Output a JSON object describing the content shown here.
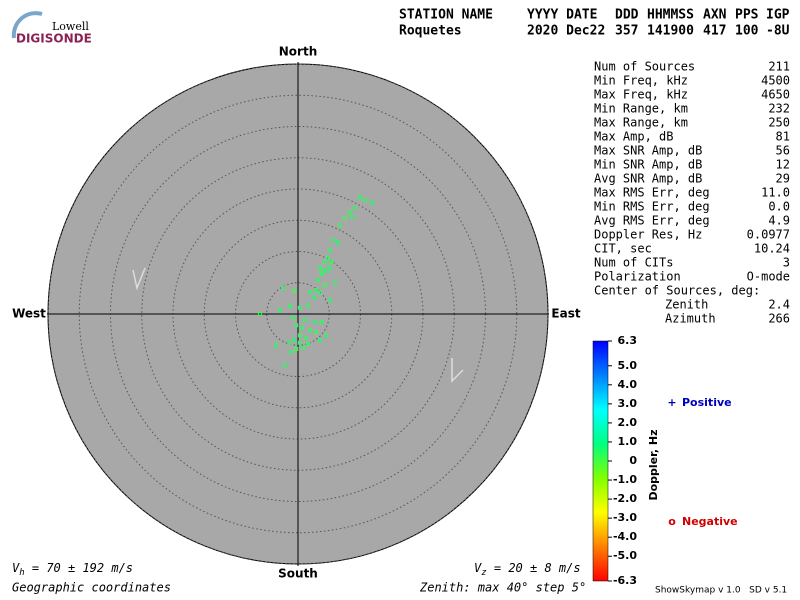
{
  "logo": {
    "top": "Lowell",
    "bottom": "DIGISONDE"
  },
  "header": {
    "labels": [
      "STATION NAME",
      "YYYY DATE",
      "DDD",
      "HHMMSS",
      "AXN",
      "PPS",
      "IGP"
    ],
    "values": [
      "Roquetes",
      "2020 Dec22",
      "357",
      "141900",
      "417",
      "100",
      "-8U"
    ]
  },
  "chart_data": {
    "type": "polar-scatter",
    "directions": {
      "north": "North",
      "south": "South",
      "west": "West",
      "east": "East"
    },
    "rlim": [
      0,
      40
    ],
    "rticks": [
      5,
      10,
      15,
      20,
      25,
      30,
      35,
      40
    ],
    "background": "#a8a8a8",
    "points": {
      "x": [
        9.9,
        10.7,
        11.8,
        9.1,
        8.3,
        7.5,
        8.8,
        6.7,
        5.6,
        6.4,
        5.1,
        4.8,
        4.3,
        5.4,
        3.5,
        4.0,
        4.6,
        5.1,
        3.8,
        3.2,
        5.9,
        4.3,
        2.9,
        1.9,
        3.5,
        2.6,
        -2.4,
        -0.6,
        5.1,
        1.6,
        0.3,
        -1.3,
        -2.9,
        -6.1,
        -0.8,
        1.1,
        2.7,
        3.8,
        -0.3,
        0.6,
        1.9,
        2.9,
        0.3,
        1.3,
        -0.6,
        -1.4,
        0.3,
        1.6,
        0.8,
        -0.3,
        -1.1,
        -2.1,
        -3.5,
        4.5,
        3.5
      ],
      "y": [
        18.7,
        18.2,
        17.8,
        17.0,
        16.2,
        15.4,
        15.5,
        14.2,
        11.8,
        11.4,
        10.2,
        9.0,
        8.3,
        8.3,
        7.4,
        7.0,
        6.9,
        7.4,
        6.4,
        5.4,
        5.0,
        4.6,
        3.8,
        3.5,
        3.4,
        2.6,
        4.2,
        3.7,
        2.2,
        1.4,
        1.0,
        1.3,
        0.6,
        0.0,
        -0.6,
        -1.0,
        -1.3,
        -1.3,
        -1.8,
        -2.2,
        -2.6,
        -2.9,
        -3.4,
        -3.8,
        -4.2,
        -4.6,
        -4.6,
        -4.8,
        -5.4,
        -5.6,
        -6.1,
        -8.2,
        -5.0,
        -3.4,
        -4.2
      ],
      "doppler": [
        0.4,
        0.4,
        0.6,
        0.4,
        0.4,
        0.2,
        0.4,
        0.4,
        0.4,
        0.6,
        0.4,
        0.4,
        0.4,
        0.2,
        0.4,
        0.4,
        0.6,
        0.4,
        0.4,
        0.4,
        0.4,
        0.2,
        0.4,
        0.4,
        0.4,
        0.6,
        0.4,
        0.2,
        0.4,
        0.4,
        0.4,
        0.4,
        0.4,
        0.2,
        0.4,
        0.4,
        0.6,
        0.4,
        0.4,
        0.4,
        0.4,
        0.2,
        0.4,
        0.4,
        0.6,
        0.4,
        0.4,
        0.4,
        0.4,
        0.2,
        0.4,
        0.4,
        0.4,
        0.4,
        0.6
      ]
    },
    "colorbar": {
      "label": "Doppler, Hz",
      "clim": [
        -6.3,
        6.3
      ],
      "colormap": [
        "#ff0000",
        "#ff8000",
        "#ffff00",
        "#80ff00",
        "#00ff80",
        "#00ffff",
        "#0080ff",
        "#0000ff"
      ],
      "ticks": [
        6.3,
        {
          "value": 5,
          "label": "5.0"
        },
        {
          "value": 4,
          "label": "4.0"
        },
        {
          "value": 3,
          "label": "3.0"
        },
        {
          "value": 2,
          "label": "2.0"
        },
        {
          "value": 1,
          "label": "1.0"
        },
        0,
        {
          "value": -1,
          "label": "-1.0"
        },
        {
          "value": -2,
          "label": "-2.0"
        },
        {
          "value": -3,
          "label": "-3.0"
        },
        {
          "value": -4,
          "label": "-4.0"
        },
        {
          "value": -5,
          "label": "-5.0"
        },
        -6.3
      ]
    },
    "legend": {
      "positive": {
        "symbol": "+",
        "text": "Positive",
        "color": "#0000c0"
      },
      "negative": {
        "symbol": "o",
        "text": "Negative",
        "color": "#d00000"
      }
    }
  },
  "stats": [
    [
      "Num of Sources",
      "211"
    ],
    [
      "Min Freq, kHz",
      "4500"
    ],
    [
      "Max Freq, kHz",
      "4650"
    ],
    [
      "Min Range, km",
      "232"
    ],
    [
      "Max Range, km",
      "250"
    ],
    [
      "Max Amp, dB",
      "81"
    ],
    [
      "Max SNR Amp, dB",
      "56"
    ],
    [
      "Min SNR Amp, dB",
      "12"
    ],
    [
      "Avg SNR Amp, dB",
      "29"
    ],
    [
      "Max RMS Err, deg",
      "11.0"
    ],
    [
      "Min RMS Err, deg",
      "0.0"
    ],
    [
      "Avg RMS Err, deg",
      "4.9"
    ],
    [
      "Doppler Res, Hz",
      "0.0977"
    ],
    [
      "CIT, sec",
      "10.24"
    ],
    [
      "Num of CITs",
      "3"
    ],
    [
      "Polarization",
      "O-mode"
    ]
  ],
  "center": {
    "title": "Center of Sources, deg:",
    "rows": [
      [
        "Zenith",
        "2.4"
      ],
      [
        "Azimuth",
        "266"
      ]
    ]
  },
  "footer": {
    "vh": {
      "symbol": "V",
      "subscript": "h",
      "text": " = 70 ± 192 m/s"
    },
    "vz": {
      "symbol": "V",
      "subscript": "z",
      "text": " = 20 ± 8 m/s"
    },
    "coords": "Geographic coordinates",
    "zenith": "Zenith: max 40°  step 5°",
    "version": "ShowSkymap v 1.0   SD v 5.1"
  }
}
